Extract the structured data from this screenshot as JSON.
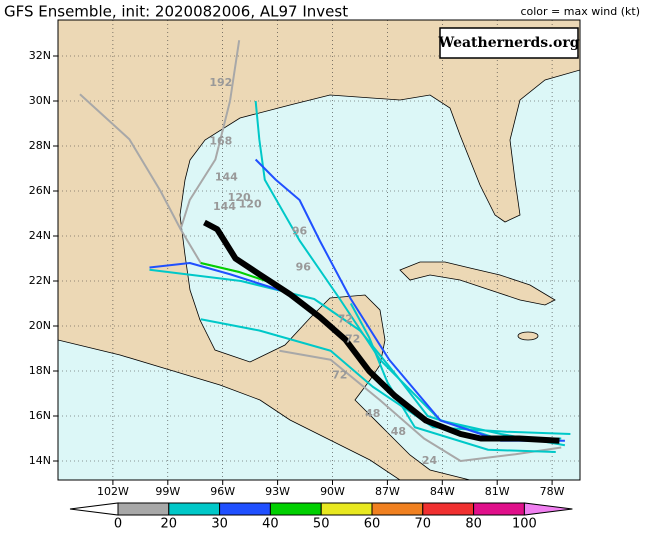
{
  "header": {
    "title": "GFS Ensemble, init: 2020082006, AL97 Invest",
    "legend_caption": "color = max wind (kt)",
    "brand": "Weathernerds.org"
  },
  "map": {
    "lonticks": [
      {
        "value": -102,
        "label": "102W"
      },
      {
        "value": -99,
        "label": "99W"
      },
      {
        "value": -96,
        "label": "96W"
      },
      {
        "value": -93,
        "label": "93W"
      },
      {
        "value": -90,
        "label": "90W"
      },
      {
        "value": -87,
        "label": "87W"
      },
      {
        "value": -84,
        "label": "84W"
      },
      {
        "value": -81,
        "label": "81W"
      },
      {
        "value": -78,
        "label": "78W"
      }
    ],
    "latticks": [
      {
        "value": 14,
        "label": "14N"
      },
      {
        "value": 16,
        "label": "16N"
      },
      {
        "value": 18,
        "label": "18N"
      },
      {
        "value": 20,
        "label": "20N"
      },
      {
        "value": 22,
        "label": "22N"
      },
      {
        "value": 24,
        "label": "24N"
      },
      {
        "value": 26,
        "label": "26N"
      },
      {
        "value": 28,
        "label": "28N"
      },
      {
        "value": 30,
        "label": "30N"
      },
      {
        "value": 32,
        "label": "32N"
      }
    ],
    "tracks": [
      {
        "color": "#a8a8a8",
        "lon": [
          -103.8,
          -101.1,
          -99.4,
          -98.3,
          -97.2,
          -95.1
        ],
        "lat": [
          30.3,
          28.3,
          26.0,
          24.3,
          22.8,
          22.4
        ]
      },
      {
        "color": "#a8a8a8",
        "lon": [
          -95.1,
          -95.6,
          -96.4,
          -97.8,
          -98.3
        ],
        "lat": [
          32.7,
          30.0,
          27.4,
          25.6,
          24.3
        ]
      },
      {
        "color": "#a8a8a8",
        "lon": [
          -77.5,
          -80.0,
          -83.0,
          -85.0,
          -87.4,
          -90.1,
          -92.9
        ],
        "lat": [
          14.6,
          14.3,
          14.0,
          15.0,
          16.7,
          18.5,
          18.9
        ]
      },
      {
        "color": "#00c8c8",
        "lon": [
          -77.3,
          -80.8,
          -84.1,
          -87.4,
          -89.6,
          -91.8,
          -93.7,
          -94.0,
          -94.2
        ],
        "lat": [
          14.7,
          15.2,
          15.8,
          18.5,
          21.2,
          23.8,
          26.5,
          28.3,
          30.0
        ]
      },
      {
        "color": "#00c8c8",
        "lon": [
          -77.0,
          -80.5,
          -84.5,
          -87.8,
          -90.1,
          -94.0,
          -97.2
        ],
        "lat": [
          15.2,
          15.3,
          15.5,
          17.3,
          18.9,
          19.8,
          20.3
        ]
      },
      {
        "color": "#00c8c8",
        "lon": [
          -77.5,
          -81.0,
          -84.8,
          -86.5,
          -88.5,
          -91.0,
          -95.0,
          -100.0
        ],
        "lat": [
          15.0,
          15.0,
          16.0,
          17.8,
          19.8,
          21.2,
          22.0,
          22.5
        ]
      },
      {
        "color": "#00c8c8",
        "lon": [
          -77.8,
          -81.5,
          -85.5,
          -87.0,
          -88.0,
          -89.0
        ],
        "lat": [
          14.4,
          14.5,
          15.5,
          17.5,
          19.5,
          21.0
        ]
      },
      {
        "color": "#2050ff",
        "lon": [
          -94.2,
          -93.1,
          -91.8,
          -90.7,
          -89.0,
          -86.9,
          -84.1,
          -80.8,
          -77.3
        ],
        "lat": [
          27.4,
          26.5,
          25.6,
          23.8,
          21.2,
          18.5,
          15.8,
          14.9,
          14.9
        ]
      },
      {
        "color": "#2050ff",
        "lon": [
          -100.0,
          -97.8,
          -95.6,
          -92.9
        ],
        "lat": [
          22.6,
          22.8,
          22.3,
          21.6
        ]
      },
      {
        "color": "#00d000",
        "lon": [
          -97.2,
          -95.1,
          -92.9
        ],
        "lat": [
          22.8,
          22.4,
          21.8
        ]
      }
    ],
    "mean_track": {
      "color": "#000000",
      "lon": [
        -97.0,
        -96.3,
        -95.3,
        -94.0,
        -92.3,
        -90.7,
        -89.3,
        -88.0,
        -86.6,
        -84.9,
        -83.0,
        -81.9,
        -79.8,
        -77.6
      ],
      "lat": [
        24.6,
        24.3,
        23.0,
        22.3,
        21.4,
        20.4,
        19.4,
        18.0,
        16.9,
        15.8,
        15.2,
        15.0,
        15.0,
        14.9
      ]
    },
    "hour_labels": [
      {
        "text": "192",
        "lon": -96.1,
        "lat": 30.8
      },
      {
        "text": "168",
        "lon": -96.1,
        "lat": 28.2
      },
      {
        "text": "144",
        "lon": -95.8,
        "lat": 26.6
      },
      {
        "text": "144",
        "lon": -95.9,
        "lat": 25.3
      },
      {
        "text": "120",
        "lon": -95.1,
        "lat": 25.7
      },
      {
        "text": "120",
        "lon": -94.5,
        "lat": 25.4
      },
      {
        "text": "96",
        "lon": -91.8,
        "lat": 24.2
      },
      {
        "text": "96",
        "lon": -91.6,
        "lat": 22.6
      },
      {
        "text": "72",
        "lon": -89.3,
        "lat": 20.3
      },
      {
        "text": "72",
        "lon": -88.9,
        "lat": 19.4
      },
      {
        "text": "72",
        "lon": -89.6,
        "lat": 17.8
      },
      {
        "text": "48",
        "lon": -87.8,
        "lat": 16.1
      },
      {
        "text": "48",
        "lon": -86.4,
        "lat": 15.3
      },
      {
        "text": "24",
        "lon": -84.7,
        "lat": 14.0
      }
    ]
  },
  "colorbar": {
    "bounds": [
      0,
      20,
      30,
      40,
      50,
      60,
      70,
      80,
      100
    ],
    "colors": [
      "#ffffff",
      "#a8a8a8",
      "#00c8c8",
      "#2050ff",
      "#00d000",
      "#e8e820",
      "#f08020",
      "#f03030",
      "#e0108a",
      "#f080f0"
    ]
  }
}
